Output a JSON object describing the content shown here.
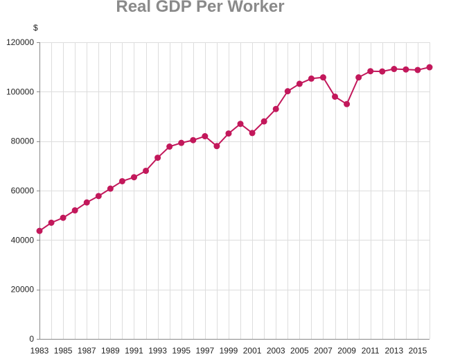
{
  "chart_data": {
    "type": "line",
    "title": "Real GDP Per Worker",
    "ylabel": "$",
    "xlabel": "",
    "x": [
      1983,
      1984,
      1985,
      1986,
      1987,
      1988,
      1989,
      1990,
      1991,
      1992,
      1993,
      1994,
      1995,
      1996,
      1997,
      1998,
      1999,
      2000,
      2001,
      2002,
      2003,
      2004,
      2005,
      2006,
      2007,
      2008,
      2009,
      2010,
      2011,
      2012,
      2013,
      2014,
      2015,
      2016
    ],
    "series": [
      {
        "values": [
          43700,
          47000,
          49000,
          52000,
          55200,
          57800,
          60800,
          63800,
          65400,
          68000,
          73300,
          77800,
          79300,
          80400,
          82000,
          78000,
          83100,
          87000,
          83300,
          88000,
          93000,
          100200,
          103200,
          105300,
          105800,
          98000,
          95000,
          105800,
          108300,
          108200,
          109200,
          109000,
          108800,
          109900
        ],
        "color": "#c2185b"
      }
    ],
    "xlim": [
      1983,
      2016
    ],
    "ylim": [
      0,
      120000
    ],
    "yticks": [
      0,
      20000,
      40000,
      60000,
      80000,
      100000,
      120000
    ],
    "xticks": [
      1983,
      1985,
      1987,
      1989,
      1991,
      1993,
      1995,
      1997,
      1999,
      2001,
      2003,
      2005,
      2007,
      2009,
      2011,
      2013,
      2015
    ],
    "grid": true,
    "legend": "none",
    "line_color": "#c2185b",
    "grid_color": "#dddddd"
  }
}
